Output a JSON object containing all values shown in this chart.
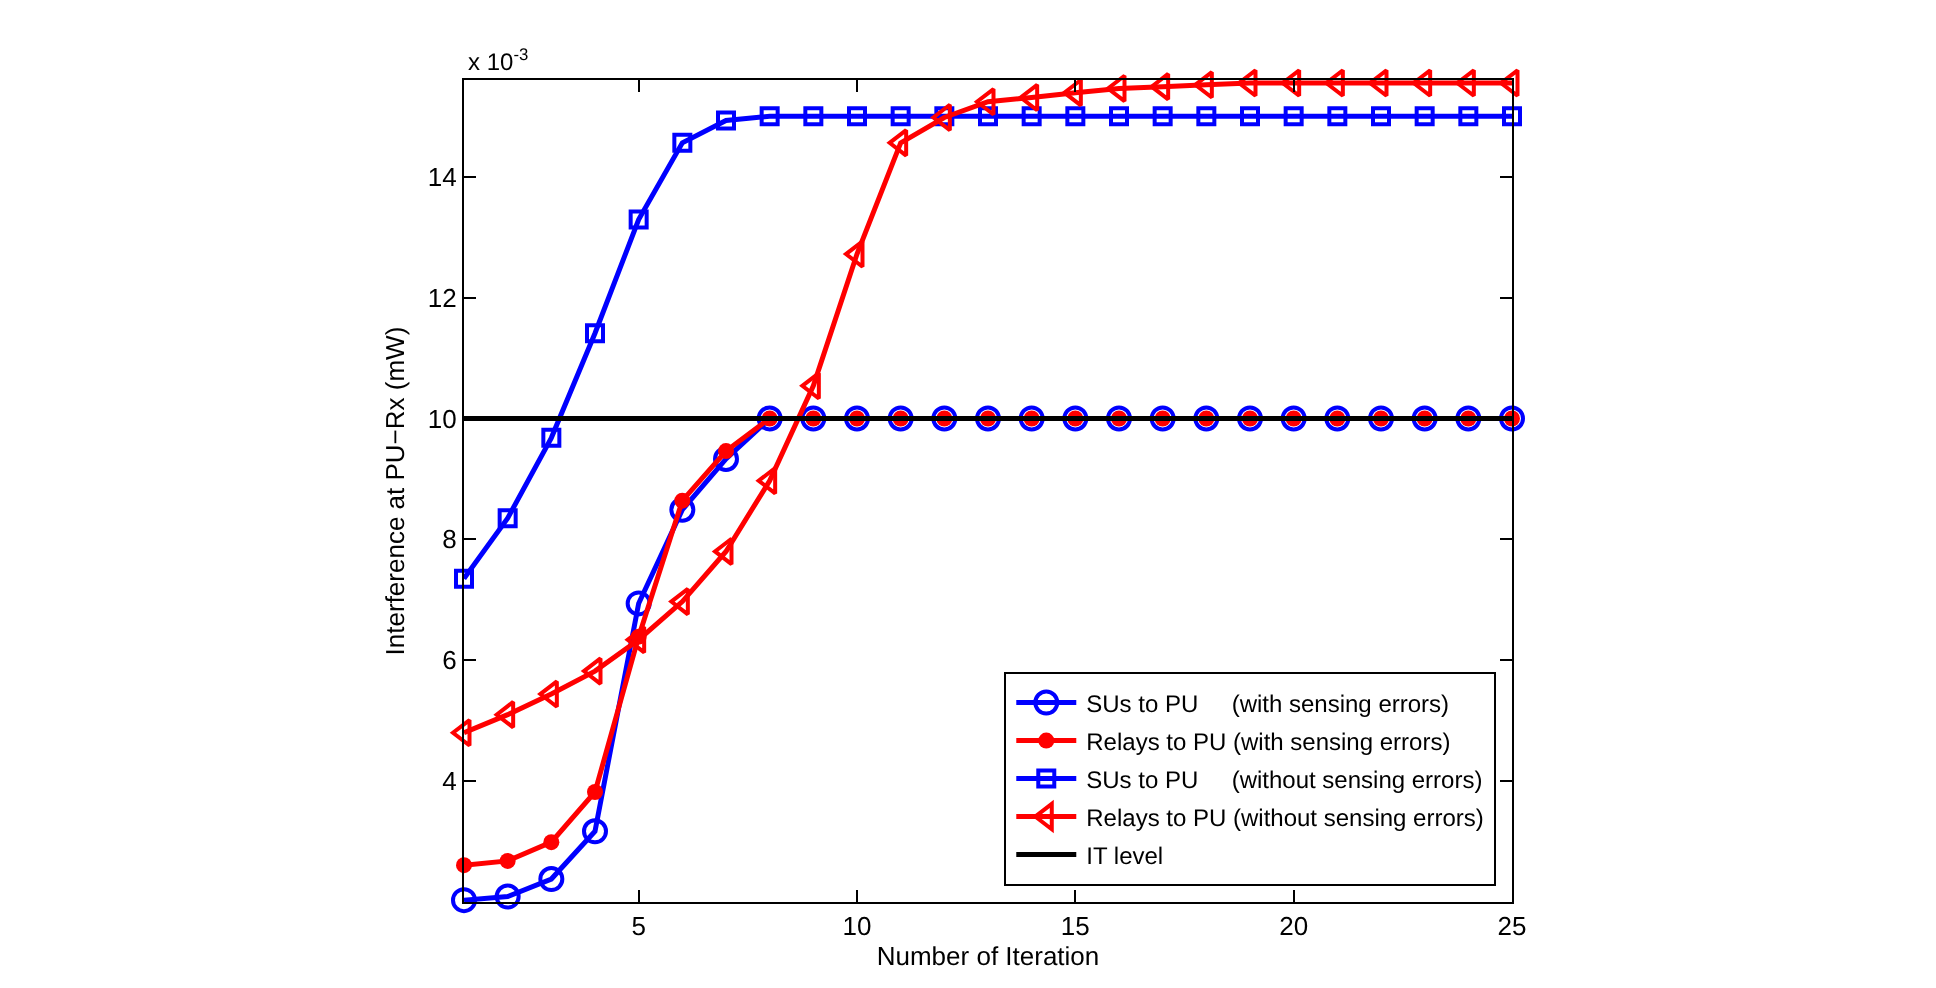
{
  "chart_data": {
    "type": "line",
    "xlabel": "Number of Iteration",
    "ylabel": "Interference at PU−Rx (mW)",
    "annotations": [
      "x 10$^{-3}$"
    ],
    "x": [
      1,
      2,
      3,
      4,
      5,
      6,
      7,
      8,
      9,
      10,
      11,
      12,
      13,
      14,
      15,
      16,
      17,
      18,
      19,
      20,
      21,
      22,
      23,
      24,
      25
    ],
    "series": [
      {
        "name": "SUs to PU     (with sensing errors)",
        "color": "#0000ff",
        "marker": "circle",
        "values": [
          2.03,
          2.09,
          2.38,
          3.17,
          6.94,
          8.49,
          9.33,
          10,
          10,
          10,
          10,
          10,
          10,
          10,
          10,
          10,
          10,
          10,
          10,
          10,
          10,
          10,
          10,
          10,
          10
        ]
      },
      {
        "name": "Relays to PU (with sensing errors)",
        "color": "#ff0000",
        "marker": "circle",
        "values": [
          2.61,
          2.68,
          2.99,
          3.82,
          6.39,
          8.64,
          9.46,
          10,
          10,
          10,
          10,
          10,
          10,
          10,
          10,
          10,
          10,
          10,
          10,
          10,
          10,
          10,
          10,
          10,
          10
        ]
      },
      {
        "name": "SUs to PU     (without sensing errors)",
        "color": "#0000ff",
        "marker": "square",
        "values": [
          7.35,
          8.35,
          9.68,
          11.41,
          13.29,
          14.56,
          14.93,
          15,
          15,
          15,
          15,
          15,
          15,
          15,
          15,
          15,
          15,
          15,
          15,
          15,
          15,
          15,
          15,
          15,
          15
        ]
      },
      {
        "name": "Relays to PU (without sensing errors)",
        "color": "#ff0000",
        "marker": "triangle",
        "values": [
          4.8,
          5.1,
          5.44,
          5.82,
          6.34,
          6.97,
          7.8,
          8.97,
          10.54,
          12.72,
          14.56,
          14.98,
          15.24,
          15.31,
          15.39,
          15.46,
          15.49,
          15.52,
          15.55,
          15.55,
          15.55,
          15.55,
          15.55,
          15.55,
          15.55
        ]
      },
      {
        "name": "IT level",
        "color": "#000000",
        "marker": "none",
        "values": [
          10,
          10,
          10,
          10,
          10,
          10,
          10,
          10,
          10,
          10,
          10,
          10,
          10,
          10,
          10,
          10,
          10,
          10,
          10,
          10,
          10,
          10,
          10,
          10,
          10
        ]
      }
    ],
    "xlim": [
      1,
      25
    ],
    "xticks": [
      5,
      10,
      15,
      20,
      25
    ],
    "ylim": [
      2,
      15.6
    ],
    "yticks": [
      4,
      6,
      8,
      10,
      12,
      14
    ],
    "legend": "bottom right",
    "line_style": "solid"
  }
}
